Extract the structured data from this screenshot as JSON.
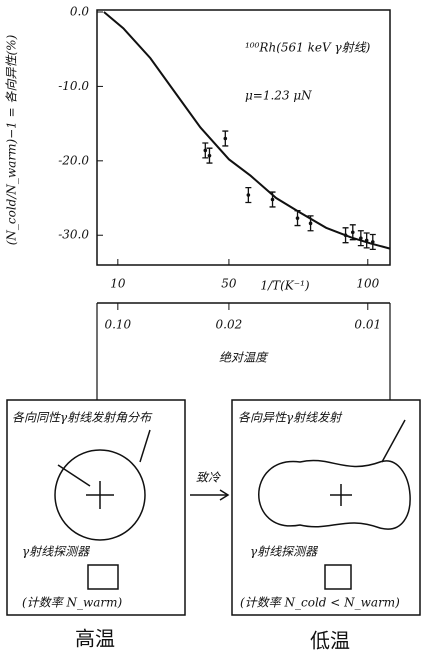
{
  "chart_data": {
    "type": "scatter",
    "ylabel": "(N_cold/N_warm)−1 = 各向异性(%)",
    "xlabel": "1/T(K⁻¹)",
    "x2label": "绝对温度",
    "annotations": [
      "¹⁰⁰Rh(561 keV γ射线)",
      "μ=1.23 μN"
    ],
    "xlim": [
      2.5,
      108
    ],
    "ylim": [
      -34,
      0
    ],
    "xticks": [
      10,
      50,
      100
    ],
    "x2scale": "reciprocal",
    "x2ticks": [
      {
        "value": 0.1,
        "label": "0.10"
      },
      0.02,
      0.01
    ],
    "yticks": [
      {
        "value": 0,
        "label": "0.0"
      },
      {
        "value": -10,
        "label": "-10.0"
      },
      {
        "value": -20,
        "label": "-20.0"
      },
      {
        "value": -30,
        "label": "-30.0"
      }
    ],
    "curve": {
      "color": "#111",
      "x": [
        5,
        12,
        21.7,
        30,
        39.7,
        50,
        57.8,
        67,
        75.8,
        85,
        94,
        101,
        108
      ],
      "values": [
        0,
        -2.2,
        -6.2,
        -10.5,
        -15.5,
        -19.8,
        -22,
        -25,
        -27,
        -29,
        -30.3,
        -31.1,
        -31.8
      ]
    },
    "series": [
      {
        "color": "#111",
        "x": [
          41.5,
          43,
          48.7,
          57,
          65.7,
          74.7,
          79.4,
          92,
          94.6,
          97.5,
          99.6,
          101.8
        ],
        "values": [
          -18.6,
          -19.3,
          -17,
          -24.6,
          -25.2,
          -27.7,
          -28.4,
          -30,
          -29.6,
          -30.4,
          -30.7,
          -30.9
        ],
        "errors": [
          1,
          1,
          1,
          1,
          1,
          1,
          1,
          1,
          1,
          1,
          1,
          1
        ]
      }
    ]
  },
  "diagram": {
    "left": {
      "title": "各向同性γ射线发射角分布",
      "detector": "γ射线探测器",
      "count": "(计数率 N_warm)",
      "caption": "高温"
    },
    "arrow": "致冷",
    "right": {
      "title": "各向异性γ射线发射",
      "detector": "γ射线探测器",
      "count": "(计数率 N_cold < N_warm)",
      "caption": "低温"
    }
  }
}
